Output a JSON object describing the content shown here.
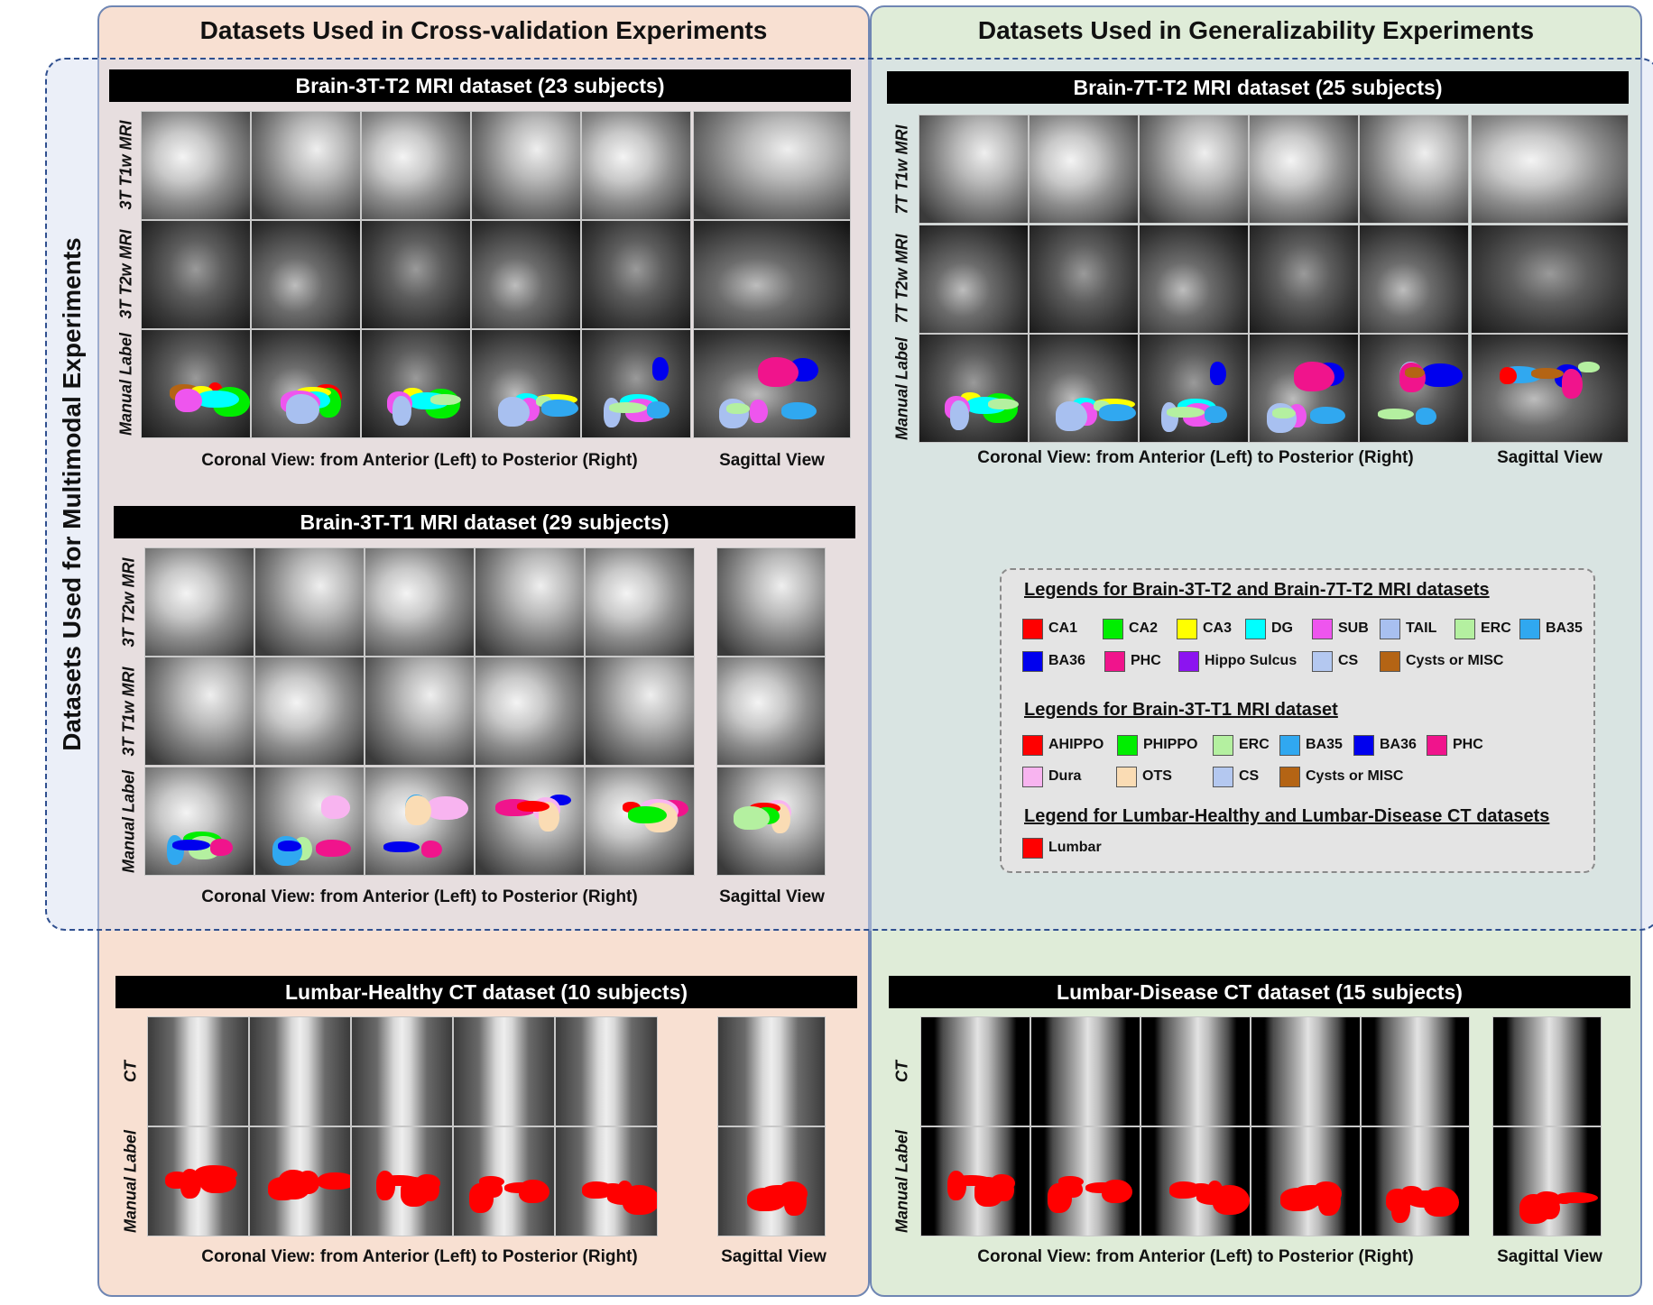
{
  "left_panel": {
    "title": "Datasets Used in Cross-validation Experiments"
  },
  "right_panel": {
    "title": "Datasets Used in Generalizability Experiments"
  },
  "multimodal": {
    "title": "Datasets Used for Multimodal Experiments"
  },
  "datasets": {
    "brain_3t_t2": {
      "title": "Brain-3T-T2 MRI dataset (23 subjects)",
      "rows": [
        "3T T1w MRI",
        "3T T2w MRI",
        "Manual Label"
      ],
      "coronal_caption": "Coronal View: from Anterior (Left) to Posterior (Right)",
      "sagittal_caption": "Sagittal View"
    },
    "brain_7t_t2": {
      "title": "Brain-7T-T2 MRI dataset (25 subjects)",
      "rows": [
        "7T T1w MRI",
        "7T T2w MRI",
        "Manual Label"
      ],
      "coronal_caption": "Coronal View: from Anterior (Left) to Posterior (Right)",
      "sagittal_caption": "Sagittal View"
    },
    "brain_3t_t1": {
      "title": "Brain-3T-T1 MRI dataset (29 subjects)",
      "rows": [
        "3T T2w MRI",
        "3T T1w MRI",
        "Manual Label"
      ],
      "coronal_caption": "Coronal View: from Anterior (Left) to Posterior (Right)",
      "sagittal_caption": "Sagittal View"
    },
    "lumbar_healthy": {
      "title": "Lumbar-Healthy CT dataset (10 subjects)",
      "rows": [
        "CT",
        "Manual Label"
      ],
      "coronal_caption": "Coronal View: from Anterior (Left) to Posterior (Right)",
      "sagittal_caption": "Sagittal View"
    },
    "lumbar_disease": {
      "title": "Lumbar-Disease CT dataset (15 subjects)",
      "rows": [
        "CT",
        "Manual Label"
      ],
      "coronal_caption": "Coronal View: from Anterior (Left) to Posterior (Right)",
      "sagittal_caption": "Sagittal View"
    }
  },
  "legends": {
    "t2_heading": "Legends for Brain-3T-T2 and Brain-7T-T2 MRI datasets",
    "t2_items": [
      {
        "label": "CA1",
        "color": "#ff0000"
      },
      {
        "label": "CA2",
        "color": "#00ee00"
      },
      {
        "label": "CA3",
        "color": "#ffff00"
      },
      {
        "label": "DG",
        "color": "#00ffff"
      },
      {
        "label": "SUB",
        "color": "#ee55ee"
      },
      {
        "label": "TAIL",
        "color": "#a8c0f0"
      },
      {
        "label": "ERC",
        "color": "#b4f0a0"
      },
      {
        "label": "BA35",
        "color": "#30a8f0"
      },
      {
        "label": "BA36",
        "color": "#0000ee"
      },
      {
        "label": "PHC",
        "color": "#f0148c"
      },
      {
        "label": "Hippo Sulcus",
        "color": "#8c14f0"
      },
      {
        "label": "CS",
        "color": "#b4c8f0"
      },
      {
        "label": "Cysts or MISC",
        "color": "#b46414"
      }
    ],
    "t1_heading": "Legends for Brain-3T-T1 MRI dataset",
    "t1_items": [
      {
        "label": "AHIPPO",
        "color": "#ff0000"
      },
      {
        "label": "PHIPPO",
        "color": "#00ee00"
      },
      {
        "label": "ERC",
        "color": "#b4f0a0"
      },
      {
        "label": "BA35",
        "color": "#30a8f0"
      },
      {
        "label": "BA36",
        "color": "#0000ee"
      },
      {
        "label": "PHC",
        "color": "#f0148c"
      },
      {
        "label": "Dura",
        "color": "#f8b4f0"
      },
      {
        "label": "OTS",
        "color": "#fadcb4"
      },
      {
        "label": "CS",
        "color": "#b4c8f0"
      },
      {
        "label": "Cysts or MISC",
        "color": "#b46414"
      }
    ],
    "ct_heading": "Legend for Lumbar-Healthy and Lumbar-Disease CT datasets",
    "ct_items": [
      {
        "label": "Lumbar",
        "color": "#ff0000"
      }
    ]
  }
}
